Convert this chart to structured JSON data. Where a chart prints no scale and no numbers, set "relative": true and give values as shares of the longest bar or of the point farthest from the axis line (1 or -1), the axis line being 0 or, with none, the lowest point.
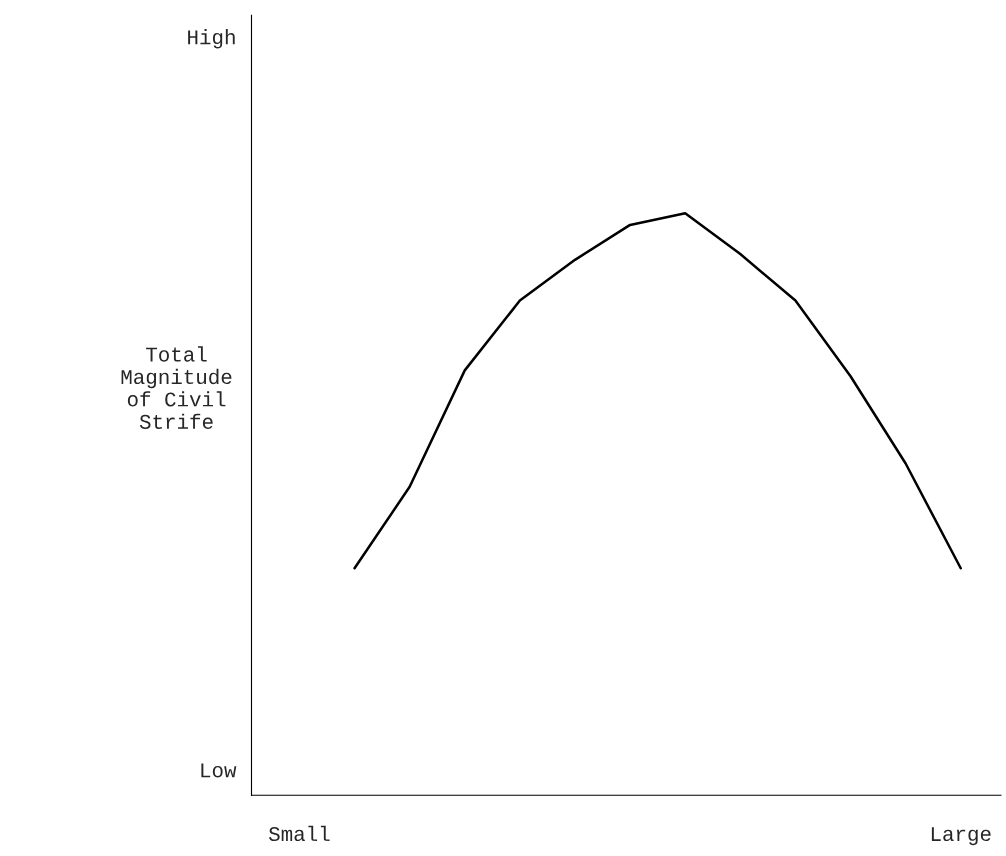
{
  "chart_data": {
    "type": "line",
    "relative": true,
    "ylabel": "Total\nMagnitude\nof Civil\nStrife",
    "annotations": [
      "High",
      "Low"
    ],
    "categories": [
      "Small",
      null,
      null,
      null,
      null,
      null,
      null,
      null,
      null,
      null,
      null,
      null,
      "Large"
    ],
    "series": [
      {
        "color": "#000000",
        "values": [
          null,
          0.39,
          0.53,
          0.73,
          0.85,
          0.92,
          0.98,
          1.0,
          0.93,
          0.85,
          0.72,
          0.57,
          0.39
        ]
      }
    ],
    "grid": false,
    "legend": false,
    "marker": "none",
    "line_style": "solid"
  }
}
